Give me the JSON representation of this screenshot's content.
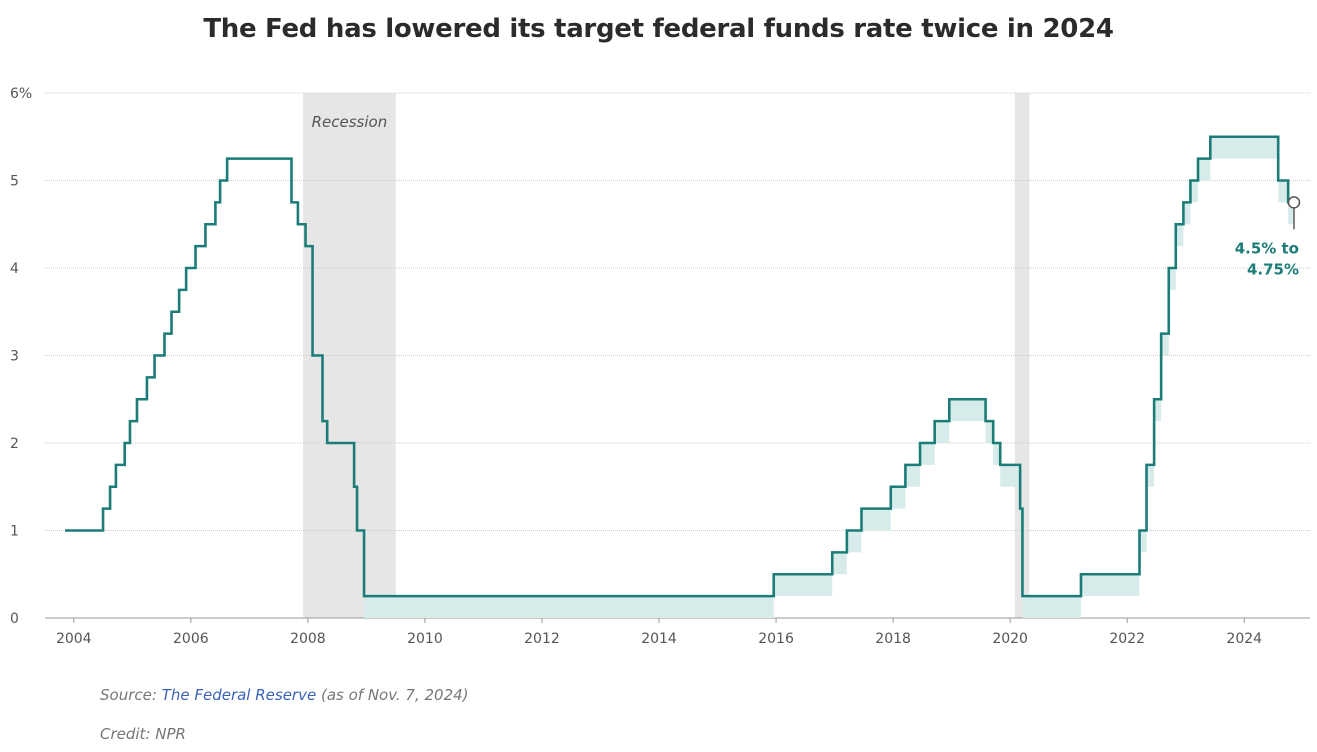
{
  "title": "The Fed has lowered its target federal funds rate twice in 2024",
  "source_prefix": "Source: ",
  "source_link": "The Federal Reserve",
  "source_suffix": " (as of Nov. 7, 2024)",
  "credit": "Credit: NPR",
  "colors": {
    "line": "#1b7c78",
    "band": "#d7ecea",
    "recession": "#e6e6e6",
    "grid": "#cccccc",
    "link": "#3a62b8"
  },
  "chart_data": {
    "type": "line",
    "title": "The Fed has lowered its target federal funds rate twice in 2024",
    "xlabel": "",
    "ylabel": "",
    "ylim": [
      0,
      6
    ],
    "xlim": [
      2003.5,
      2025.1
    ],
    "grid": true,
    "y_ticks": [
      {
        "value": 0,
        "label": "0"
      },
      {
        "value": 1,
        "label": "1"
      },
      {
        "value": 2,
        "label": "2"
      },
      {
        "value": 3,
        "label": "3"
      },
      {
        "value": 4,
        "label": "4"
      },
      {
        "value": 5,
        "label": "5"
      },
      {
        "value": 6,
        "label": "6%"
      }
    ],
    "x_ticks": [
      "2004",
      "2006",
      "2008",
      "2010",
      "2012",
      "2014",
      "2016",
      "2018",
      "2020",
      "2022",
      "2024"
    ],
    "recessions": [
      {
        "start": 2007.92,
        "end": 2009.5,
        "label": "Recession"
      },
      {
        "start": 2020.08,
        "end": 2020.33,
        "label": ""
      }
    ],
    "series": [
      {
        "points": [
          [
            2003.85,
            1.0
          ],
          [
            2004.5,
            1.25
          ],
          [
            2004.62,
            1.5
          ],
          [
            2004.72,
            1.75
          ],
          [
            2004.87,
            2.0
          ],
          [
            2004.96,
            2.25
          ],
          [
            2005.08,
            2.5
          ],
          [
            2005.25,
            2.75
          ],
          [
            2005.38,
            3.0
          ],
          [
            2005.55,
            3.25
          ],
          [
            2005.67,
            3.5
          ],
          [
            2005.8,
            3.75
          ],
          [
            2005.92,
            4.0
          ],
          [
            2006.08,
            4.25
          ],
          [
            2006.25,
            4.5
          ],
          [
            2006.42,
            4.75
          ],
          [
            2006.5,
            5.0
          ],
          [
            2006.62,
            5.25
          ],
          [
            2007.72,
            5.25
          ],
          [
            2007.72,
            4.75
          ],
          [
            2007.83,
            4.5
          ],
          [
            2007.96,
            4.25
          ],
          [
            2008.08,
            3.5
          ],
          [
            2008.08,
            3.0
          ],
          [
            2008.25,
            2.25
          ],
          [
            2008.33,
            2.0
          ],
          [
            2008.79,
            1.5
          ],
          [
            2008.84,
            1.0
          ],
          [
            2008.96,
            0.25
          ],
          [
            2015.96,
            0.25
          ],
          [
            2015.96,
            0.5
          ],
          [
            2016.96,
            0.5
          ],
          [
            2016.96,
            0.75
          ],
          [
            2017.21,
            0.75
          ],
          [
            2017.21,
            1.0
          ],
          [
            2017.46,
            1.0
          ],
          [
            2017.46,
            1.25
          ],
          [
            2017.96,
            1.25
          ],
          [
            2017.96,
            1.5
          ],
          [
            2018.21,
            1.5
          ],
          [
            2018.21,
            1.75
          ],
          [
            2018.46,
            1.75
          ],
          [
            2018.46,
            2.0
          ],
          [
            2018.71,
            2.0
          ],
          [
            2018.71,
            2.25
          ],
          [
            2018.96,
            2.25
          ],
          [
            2018.96,
            2.5
          ],
          [
            2019.58,
            2.5
          ],
          [
            2019.58,
            2.25
          ],
          [
            2019.71,
            2.25
          ],
          [
            2019.71,
            2.0
          ],
          [
            2019.83,
            2.0
          ],
          [
            2019.83,
            1.75
          ],
          [
            2020.17,
            1.75
          ],
          [
            2020.17,
            1.25
          ],
          [
            2020.21,
            1.25
          ],
          [
            2020.21,
            0.25
          ],
          [
            2021.21,
            0.25
          ],
          [
            2021.21,
            0.5
          ],
          [
            2022.21,
            0.5
          ],
          [
            2022.21,
            1.0
          ],
          [
            2022.33,
            1.0
          ],
          [
            2022.33,
            1.75
          ],
          [
            2022.46,
            1.75
          ],
          [
            2022.46,
            2.5
          ],
          [
            2022.58,
            2.5
          ],
          [
            2022.58,
            3.25
          ],
          [
            2022.71,
            3.25
          ],
          [
            2022.71,
            4.0
          ],
          [
            2022.83,
            4.0
          ],
          [
            2022.83,
            4.5
          ],
          [
            2022.96,
            4.5
          ],
          [
            2022.96,
            4.75
          ],
          [
            2023.08,
            4.75
          ],
          [
            2023.08,
            5.0
          ],
          [
            2023.21,
            5.0
          ],
          [
            2023.21,
            5.25
          ],
          [
            2023.42,
            5.25
          ],
          [
            2023.42,
            5.5
          ],
          [
            2024.58,
            5.5
          ],
          [
            2024.58,
            5.0
          ],
          [
            2024.75,
            5.0
          ],
          [
            2024.75,
            4.75
          ],
          [
            2024.85,
            4.75
          ]
        ]
      }
    ],
    "annotation": {
      "line1": "4.5% to",
      "line2": "4.75%",
      "x": 2024.85,
      "y": 4.75
    }
  }
}
